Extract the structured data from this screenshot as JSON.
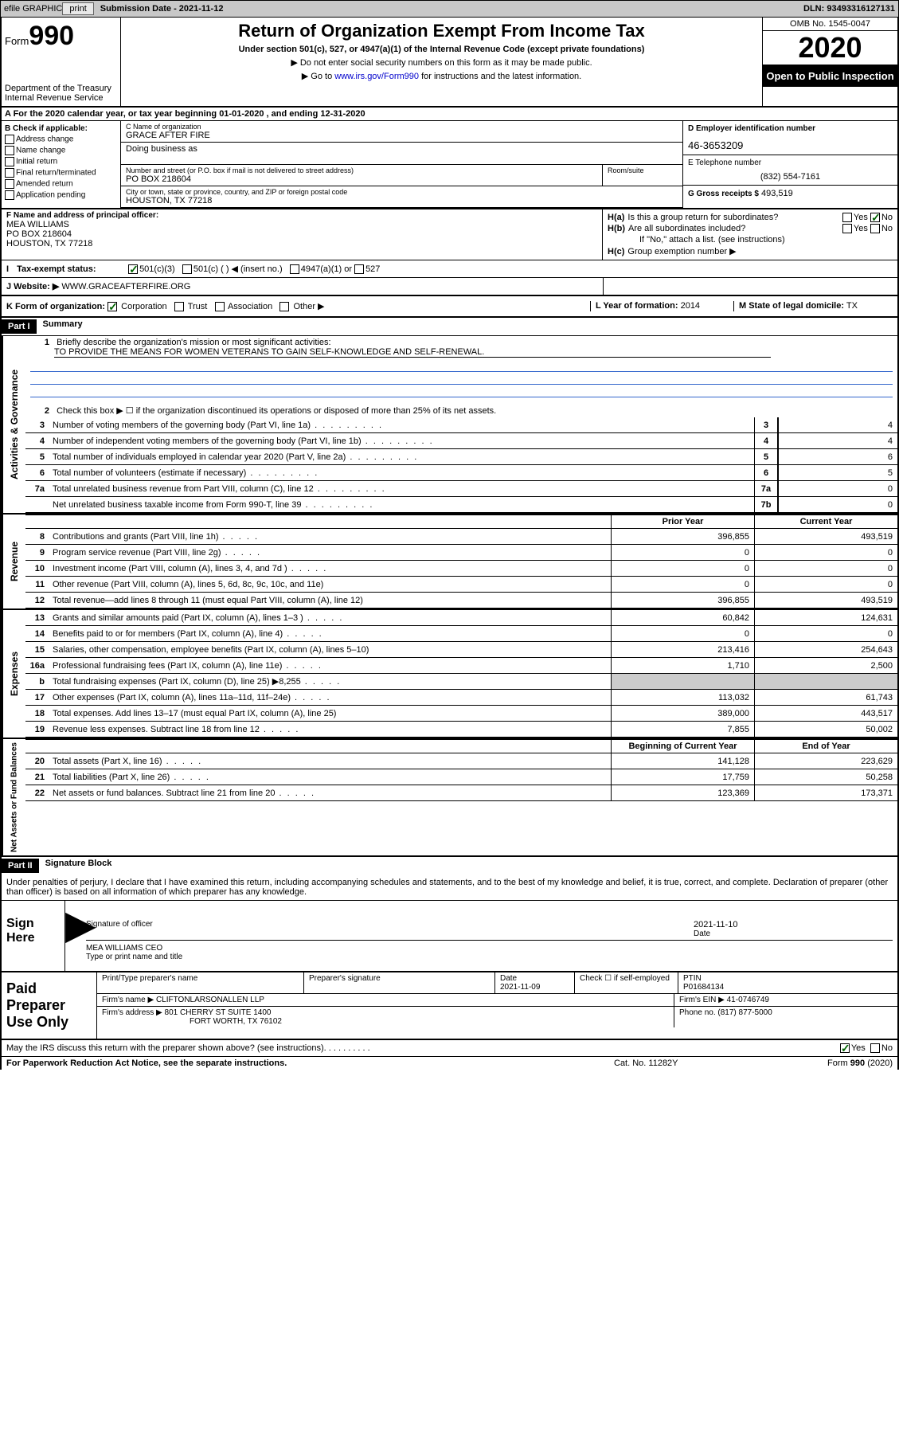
{
  "topbar": {
    "efile": "efile GRAPHIC",
    "print": "print",
    "sub_date_lbl": "Submission Date - 2021-11-12",
    "dln": "DLN: 93493316127131"
  },
  "header": {
    "form_word": "Form",
    "form_num": "990",
    "dept": "Department of the Treasury\nInternal Revenue Service",
    "title": "Return of Organization Exempt From Income Tax",
    "subtitle": "Under section 501(c), 527, or 4947(a)(1) of the Internal Revenue Code (except private foundations)",
    "line1": "Do not enter social security numbers on this form as it may be made public.",
    "line2_pre": "Go to ",
    "line2_link": "www.irs.gov/Form990",
    "line2_post": " for instructions and the latest information.",
    "omb": "OMB No. 1545-0047",
    "year": "2020",
    "open": "Open to Public Inspection"
  },
  "section_a": "A For the 2020 calendar year, or tax year beginning 01-01-2020    , and ending 12-31-2020",
  "col_b": {
    "lbl": "B Check if applicable:",
    "items": [
      "Address change",
      "Name change",
      "Initial return",
      "Final return/terminated",
      "Amended return",
      "Application pending"
    ]
  },
  "org": {
    "name_lbl": "C Name of organization",
    "name": "GRACE AFTER FIRE",
    "dba_lbl": "Doing business as",
    "dba": "",
    "street_lbl": "Number and street (or P.O. box if mail is not delivered to street address)",
    "street": "PO BOX 218604",
    "suite_lbl": "Room/suite",
    "city_lbl": "City or town, state or province, country, and ZIP or foreign postal code",
    "city": "HOUSTON, TX  77218"
  },
  "col_d": {
    "ein_lbl": "D Employer identification number",
    "ein": "46-3653209",
    "tel_lbl": "E Telephone number",
    "tel": "(832) 554-7161",
    "gross_lbl": "G Gross receipts $",
    "gross": "493,519"
  },
  "col_f": {
    "lbl": "F  Name and address of principal officer:",
    "name": "MEA WILLIAMS",
    "addr1": "PO BOX 218604",
    "addr2": "HOUSTON, TX  77218"
  },
  "col_h": {
    "ha": "Is this a group return for subordinates?",
    "hb": "Are all subordinates included?",
    "hb_note": "If \"No,\" attach a list. (see instructions)",
    "hc": "Group exemption number ▶",
    "yes": "Yes",
    "no": "No"
  },
  "tax_status": {
    "lbl": "Tax-exempt status:",
    "opt1": "501(c)(3)",
    "opt2": "501(c) (  ) ◀ (insert no.)",
    "opt3": "4947(a)(1) or",
    "opt4": "527"
  },
  "website": {
    "lbl": "J Website: ▶",
    "val": "WWW.GRACEAFTERFIRE.ORG"
  },
  "klm": {
    "k_lbl": "K Form of organization:",
    "k_opts": [
      "Corporation",
      "Trust",
      "Association",
      "Other ▶"
    ],
    "l_lbl": "L Year of formation:",
    "l_val": "2014",
    "m_lbl": "M State of legal domicile:",
    "m_val": "TX"
  },
  "part1": {
    "hdr": "Part I",
    "title": "Summary",
    "line1_lbl": "Briefly describe the organization's mission or most significant activities:",
    "line1_val": "TO PROVIDE THE MEANS FOR WOMEN VETERANS TO GAIN SELF-KNOWLEDGE AND SELF-RENEWAL.",
    "line2": "Check this box ▶ ☐  if the organization discontinued its operations or disposed of more than 25% of its net assets.",
    "rows_gov": [
      {
        "n": "3",
        "d": "Number of voting members of the governing body (Part VI, line 1a)",
        "box": "3",
        "v": "4"
      },
      {
        "n": "4",
        "d": "Number of independent voting members of the governing body (Part VI, line 1b)",
        "box": "4",
        "v": "4"
      },
      {
        "n": "5",
        "d": "Total number of individuals employed in calendar year 2020 (Part V, line 2a)",
        "box": "5",
        "v": "6"
      },
      {
        "n": "6",
        "d": "Total number of volunteers (estimate if necessary)",
        "box": "6",
        "v": "5"
      },
      {
        "n": "7a",
        "d": "Total unrelated business revenue from Part VIII, column (C), line 12",
        "box": "7a",
        "v": "0"
      },
      {
        "n": "",
        "d": "Net unrelated business taxable income from Form 990-T, line 39",
        "box": "7b",
        "v": "0"
      }
    ],
    "col_hdrs": {
      "prior": "Prior Year",
      "current": "Current Year",
      "begin": "Beginning of Current Year",
      "end": "End of Year"
    },
    "rows_rev": [
      {
        "n": "8",
        "d": "Contributions and grants (Part VIII, line 1h)",
        "p": "396,855",
        "c": "493,519"
      },
      {
        "n": "9",
        "d": "Program service revenue (Part VIII, line 2g)",
        "p": "0",
        "c": "0"
      },
      {
        "n": "10",
        "d": "Investment income (Part VIII, column (A), lines 3, 4, and 7d )",
        "p": "0",
        "c": "0"
      },
      {
        "n": "11",
        "d": "Other revenue (Part VIII, column (A), lines 5, 6d, 8c, 9c, 10c, and 11e)",
        "p": "0",
        "c": "0"
      },
      {
        "n": "12",
        "d": "Total revenue—add lines 8 through 11 (must equal Part VIII, column (A), line 12)",
        "p": "396,855",
        "c": "493,519"
      }
    ],
    "rows_exp": [
      {
        "n": "13",
        "d": "Grants and similar amounts paid (Part IX, column (A), lines 1–3 )",
        "p": "60,842",
        "c": "124,631"
      },
      {
        "n": "14",
        "d": "Benefits paid to or for members (Part IX, column (A), line 4)",
        "p": "0",
        "c": "0"
      },
      {
        "n": "15",
        "d": "Salaries, other compensation, employee benefits (Part IX, column (A), lines 5–10)",
        "p": "213,416",
        "c": "254,643"
      },
      {
        "n": "16a",
        "d": "Professional fundraising fees (Part IX, column (A), line 11e)",
        "p": "1,710",
        "c": "2,500"
      },
      {
        "n": "b",
        "d": "Total fundraising expenses (Part IX, column (D), line 25) ▶8,255",
        "p": "grey",
        "c": "grey"
      },
      {
        "n": "17",
        "d": "Other expenses (Part IX, column (A), lines 11a–11d, 11f–24e)",
        "p": "113,032",
        "c": "61,743"
      },
      {
        "n": "18",
        "d": "Total expenses. Add lines 13–17 (must equal Part IX, column (A), line 25)",
        "p": "389,000",
        "c": "443,517"
      },
      {
        "n": "19",
        "d": "Revenue less expenses. Subtract line 18 from line 12",
        "p": "7,855",
        "c": "50,002"
      }
    ],
    "rows_net": [
      {
        "n": "20",
        "d": "Total assets (Part X, line 16)",
        "p": "141,128",
        "c": "223,629"
      },
      {
        "n": "21",
        "d": "Total liabilities (Part X, line 26)",
        "p": "17,759",
        "c": "50,258"
      },
      {
        "n": "22",
        "d": "Net assets or fund balances. Subtract line 21 from line 20",
        "p": "123,369",
        "c": "173,371"
      }
    ],
    "side_gov": "Activities & Governance",
    "side_rev": "Revenue",
    "side_exp": "Expenses",
    "side_net": "Net Assets or Fund Balances"
  },
  "part2": {
    "hdr": "Part II",
    "title": "Signature Block",
    "text": "Under penalties of perjury, I declare that I have examined this return, including accompanying schedules and statements, and to the best of my knowledge and belief, it is true, correct, and complete. Declaration of preparer (other than officer) is based on all information of which preparer has any knowledge.",
    "sign_here": "Sign Here",
    "sig_officer": "Signature of officer",
    "sig_date": "2021-11-10",
    "date_lbl": "Date",
    "officer_name": "MEA WILLIAMS CEO",
    "type_name": "Type or print name and title",
    "paid_prep": "Paid Preparer Use Only",
    "prep_name_lbl": "Print/Type preparer's name",
    "prep_sig_lbl": "Preparer's signature",
    "prep_date_lbl": "Date",
    "prep_date": "2021-11-09",
    "prep_check": "Check ☐ if self-employed",
    "ptin_lbl": "PTIN",
    "ptin": "P01684134",
    "firm_name_lbl": "Firm's name    ▶",
    "firm_name": "CLIFTONLARSONALLEN LLP",
    "firm_ein_lbl": "Firm's EIN ▶",
    "firm_ein": "41-0746749",
    "firm_addr_lbl": "Firm's address ▶",
    "firm_addr1": "801 CHERRY ST SUITE 1400",
    "firm_addr2": "FORT WORTH, TX  76102",
    "phone_lbl": "Phone no.",
    "phone": "(817) 877-5000",
    "discuss": "May the IRS discuss this return with the preparer shown above? (see instructions)"
  },
  "footer": {
    "l": "For Paperwork Reduction Act Notice, see the separate instructions.",
    "c": "Cat. No. 11282Y",
    "r": "Form 990 (2020)"
  }
}
